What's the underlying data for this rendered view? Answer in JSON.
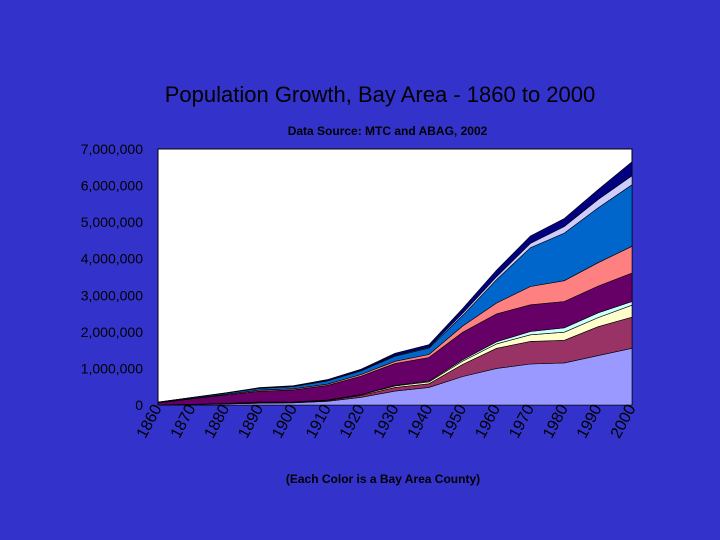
{
  "chart_data": {
    "type": "area",
    "stacked": true,
    "title": "Population Growth, Bay Area - 1860 to 2000",
    "subtitle": "Data Source: MTC and ABAG, 2002",
    "footnote": "(Each Color is a Bay Area County)",
    "x": [
      1860,
      1870,
      1880,
      1890,
      1900,
      1910,
      1920,
      1930,
      1940,
      1950,
      1960,
      1970,
      1980,
      1990,
      2000
    ],
    "x_tick_labels": [
      "1860",
      "1870",
      "1880",
      "1890",
      "1900",
      "1910",
      "1920",
      "1930",
      "1940",
      "1950",
      "1960",
      "1970",
      "1980",
      "1990",
      "2000"
    ],
    "y_tick_labels": [
      "0",
      "1,000,000",
      "2,000,000",
      "3,000,000",
      "4,000,000",
      "5,000,000",
      "6,000,000",
      "7,000,000"
    ],
    "ylim": [
      0,
      7000000
    ],
    "grid": false,
    "legend": "none",
    "series": [
      {
        "color": "#9999ff",
        "values": [
          0,
          12000,
          27000,
          49000,
          60000,
          100000,
          210000,
          380000,
          480000,
          780000,
          1000000,
          1120000,
          1150000,
          1350000,
          1550000
        ]
      },
      {
        "color": "#993366",
        "values": [
          0,
          5000,
          10000,
          20000,
          15000,
          20000,
          50000,
          100000,
          100000,
          330000,
          550000,
          620000,
          620000,
          790000,
          850000
        ]
      },
      {
        "color": "#ffffcc",
        "values": [
          0,
          2000,
          4000,
          6000,
          6000,
          10000,
          20000,
          40000,
          50000,
          90000,
          120000,
          180000,
          220000,
          250000,
          330000
        ]
      },
      {
        "color": "#ccffff",
        "values": [
          0,
          1000,
          2000,
          3000,
          3000,
          5000,
          8000,
          15000,
          20000,
          40000,
          60000,
          90000,
          120000,
          130000,
          100000
        ]
      },
      {
        "color": "#660066",
        "values": [
          56000,
          150000,
          230000,
          300000,
          330000,
          400000,
          500000,
          600000,
          650000,
          750000,
          760000,
          730000,
          720000,
          730000,
          780000
        ]
      },
      {
        "color": "#ff8080",
        "values": [
          6000,
          11000,
          19000,
          30000,
          30000,
          35000,
          45000,
          60000,
          80000,
          170000,
          300000,
          500000,
          570000,
          640000,
          730000
        ]
      },
      {
        "color": "#0066cc",
        "values": [
          14000,
          20000,
          30000,
          48000,
          60000,
          90000,
          100000,
          140000,
          175000,
          290000,
          640000,
          1060000,
          1300000,
          1500000,
          1680000
        ]
      },
      {
        "color": "#ccccff",
        "values": [
          1000,
          1800,
          3500,
          4500,
          5000,
          7000,
          10000,
          20000,
          25000,
          60000,
          80000,
          120000,
          180000,
          230000,
          250000
        ]
      },
      {
        "color": "#000080",
        "values": [
          3000,
          5000,
          9000,
          15000,
          20000,
          28000,
          35000,
          60000,
          70000,
          130000,
          180000,
          200000,
          220000,
          270000,
          380000
        ]
      }
    ]
  }
}
